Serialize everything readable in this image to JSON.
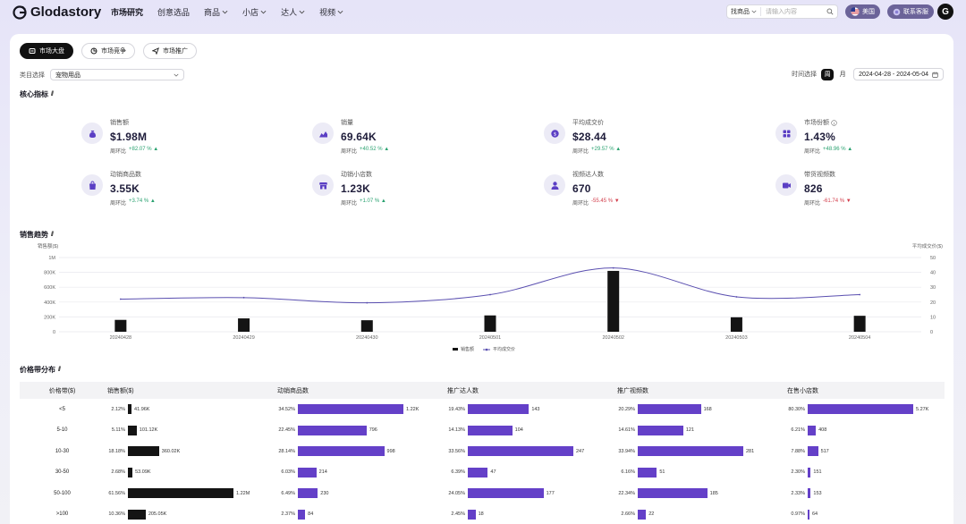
{
  "app": {
    "name": "Glodastory"
  },
  "nav": [
    {
      "label": "市场研究",
      "active": true,
      "dropdown": false
    },
    {
      "label": "创意选品",
      "active": false,
      "dropdown": false
    },
    {
      "label": "商品",
      "active": false,
      "dropdown": true
    },
    {
      "label": "小店",
      "active": false,
      "dropdown": true
    },
    {
      "label": "达人",
      "active": false,
      "dropdown": true
    },
    {
      "label": "视频",
      "active": false,
      "dropdown": true
    }
  ],
  "search": {
    "scope": "找商品",
    "placeholder": "请输入内容"
  },
  "region": {
    "label": "美国"
  },
  "support": {
    "label": "联系客服"
  },
  "user": {
    "initial": "G"
  },
  "tabs": [
    {
      "label": "市场大盘",
      "active": true
    },
    {
      "label": "市场竞争",
      "active": false
    },
    {
      "label": "市场推广",
      "active": false
    }
  ],
  "category": {
    "label": "类目选择",
    "value": "宠物用品"
  },
  "time": {
    "label": "时间选择",
    "week": "周",
    "month": "月",
    "range": "2024-04-28 - 2024-05-04"
  },
  "sections": {
    "core": "核心指标",
    "trend": "销售趋势",
    "price": "价格带分布"
  },
  "metrics": [
    {
      "label": "销售额",
      "value": "$1.98M",
      "change_label": "周环比",
      "change": "+82.07 %",
      "dir": "up",
      "icon": "money-bag-icon",
      "info": false
    },
    {
      "label": "销量",
      "value": "69.64K",
      "change_label": "周环比",
      "change": "+40.52 %",
      "dir": "up",
      "icon": "area-chart-icon",
      "info": false
    },
    {
      "label": "平均成交价",
      "value": "$28.44",
      "change_label": "周环比",
      "change": "+29.57 %",
      "dir": "up",
      "icon": "price-tag-icon",
      "info": false
    },
    {
      "label": "市场份额",
      "value": "1.43%",
      "change_label": "周环比",
      "change": "+48.96 %",
      "dir": "up",
      "icon": "grid-icon",
      "info": true
    },
    {
      "label": "动销商品数",
      "value": "3.55K",
      "change_label": "周环比",
      "change": "+3.74 %",
      "dir": "up",
      "icon": "shopping-bag-icon",
      "info": false
    },
    {
      "label": "动销小店数",
      "value": "1.23K",
      "change_label": "周环比",
      "change": "+1.07 %",
      "dir": "up",
      "icon": "store-icon",
      "info": false
    },
    {
      "label": "视频达人数",
      "value": "670",
      "change_label": "周环比",
      "change": "-55.45 %",
      "dir": "down",
      "icon": "person-icon",
      "info": false
    },
    {
      "label": "带货视频数",
      "value": "826",
      "change_label": "周环比",
      "change": "-61.74 %",
      "dir": "down",
      "icon": "video-icon",
      "info": false
    }
  ],
  "chart_data": {
    "type": "bar",
    "categories": [
      "20240428",
      "20240429",
      "20240430",
      "20240501",
      "20240502",
      "20240503",
      "20240504"
    ],
    "series": [
      {
        "name": "销售额",
        "type": "bar",
        "axis": "left",
        "values": [
          160000,
          180000,
          155000,
          220000,
          820000,
          195000,
          215000
        ]
      },
      {
        "name": "平均成交价",
        "type": "line",
        "axis": "right",
        "values": [
          22,
          23,
          19.5,
          25,
          43,
          23.5,
          25
        ]
      }
    ],
    "ylabel": "销售额($)",
    "y2label": "平均成交价($)",
    "ylim": [
      0,
      1000000
    ],
    "y2lim": [
      0,
      50
    ],
    "yticks": [
      "0",
      "200K",
      "400K",
      "600K",
      "800K",
      "1M"
    ],
    "y2ticks": [
      "0",
      "10",
      "20",
      "30",
      "40",
      "50"
    ],
    "grid": true,
    "legend": "bottom-center"
  },
  "price_table": {
    "headers": [
      "价格带($)",
      "销售额($)",
      "动销商品数",
      "推广达人数",
      "推广视频数",
      "在售小店数"
    ],
    "rows": [
      {
        "band": "<5",
        "cells": [
          {
            "pct": "2.12%",
            "frac": 0.0344,
            "value": "41.96K"
          },
          {
            "pct": "34.52%",
            "frac": 1.0,
            "value": "1.22K"
          },
          {
            "pct": "19.43%",
            "frac": 0.579,
            "value": "143"
          },
          {
            "pct": "20.29%",
            "frac": 0.598,
            "value": "168"
          },
          {
            "pct": "80.30%",
            "frac": 1.0,
            "value": "5.27K"
          }
        ]
      },
      {
        "band": "5-10",
        "cells": [
          {
            "pct": "5.11%",
            "frac": 0.083,
            "value": "101.12K"
          },
          {
            "pct": "22.45%",
            "frac": 0.65,
            "value": "796"
          },
          {
            "pct": "14.13%",
            "frac": 0.421,
            "value": "104"
          },
          {
            "pct": "14.61%",
            "frac": 0.431,
            "value": "121"
          },
          {
            "pct": "6.21%",
            "frac": 0.077,
            "value": "408"
          }
        ]
      },
      {
        "band": "10-30",
        "cells": [
          {
            "pct": "18.18%",
            "frac": 0.295,
            "value": "360.02K"
          },
          {
            "pct": "28.14%",
            "frac": 0.818,
            "value": "998"
          },
          {
            "pct": "33.56%",
            "frac": 1.0,
            "value": "247"
          },
          {
            "pct": "33.94%",
            "frac": 1.0,
            "value": "281"
          },
          {
            "pct": "7.88%",
            "frac": 0.098,
            "value": "517"
          }
        ]
      },
      {
        "band": "30-50",
        "cells": [
          {
            "pct": "2.68%",
            "frac": 0.0434,
            "value": "53.09K"
          },
          {
            "pct": "6.03%",
            "frac": 0.175,
            "value": "214"
          },
          {
            "pct": "6.39%",
            "frac": 0.19,
            "value": "47"
          },
          {
            "pct": "6.16%",
            "frac": 0.181,
            "value": "51"
          },
          {
            "pct": "2.30%",
            "frac": 0.029,
            "value": "151"
          }
        ]
      },
      {
        "band": "50-100",
        "cells": [
          {
            "pct": "61.56%",
            "frac": 1.0,
            "value": "1.22M"
          },
          {
            "pct": "6.49%",
            "frac": 0.189,
            "value": "230"
          },
          {
            "pct": "24.05%",
            "frac": 0.717,
            "value": "177"
          },
          {
            "pct": "22.34%",
            "frac": 0.658,
            "value": "185"
          },
          {
            "pct": "2.33%",
            "frac": 0.029,
            "value": "153"
          }
        ]
      },
      {
        "band": ">100",
        "cells": [
          {
            "pct": "10.36%",
            "frac": 0.168,
            "value": "205.05K"
          },
          {
            "pct": "2.37%",
            "frac": 0.069,
            "value": "84"
          },
          {
            "pct": "2.45%",
            "frac": 0.073,
            "value": "18"
          },
          {
            "pct": "2.66%",
            "frac": 0.078,
            "value": "22"
          },
          {
            "pct": "0.97%",
            "frac": 0.012,
            "value": "64"
          }
        ]
      }
    ]
  },
  "colors": {
    "accent": "#6440c8",
    "bar_black": "#141414",
    "up": "#2aa270",
    "down": "#d23c4a",
    "line": "#5a4fb0"
  }
}
